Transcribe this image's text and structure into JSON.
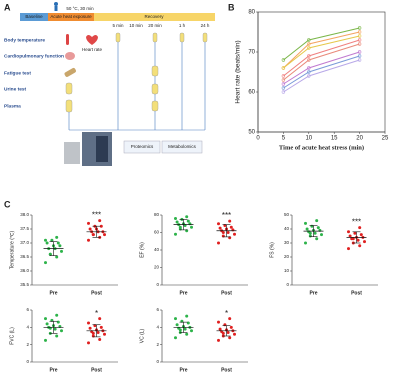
{
  "diagram": {
    "label": "A",
    "condition": "50 °C, 30 min",
    "stages": [
      "Baseline",
      "Acute heat exposure",
      "Recovery"
    ],
    "times": [
      "5 min",
      "10 min",
      "20 min",
      "1 h",
      "24 h"
    ],
    "measures": [
      "Body temperature",
      "Cardiopulmonary function",
      "Fatigue test",
      "Urine test",
      "Plasma"
    ],
    "heart_rate": "Heart rate",
    "omics": [
      "Proteomics",
      "Metabolomics"
    ]
  },
  "chart_data": [
    {
      "type": "line",
      "panel_label": "B",
      "y_label": "Heart rate (beats/min)",
      "x_label": "Time of acute heat stress (min)",
      "x": [
        5,
        10,
        20
      ],
      "xlim": [
        0,
        25
      ],
      "xticks": [
        0,
        5,
        10,
        15,
        20,
        25
      ],
      "ylim": [
        50,
        80
      ],
      "yticks": [
        50,
        60,
        70,
        80
      ],
      "series": [
        {
          "color": "#7ab648",
          "values": [
            68,
            73,
            76
          ]
        },
        {
          "color": "#f4a460",
          "values": [
            66,
            72,
            75
          ]
        },
        {
          "color": "#e6c84b",
          "values": [
            66,
            71,
            74
          ]
        },
        {
          "color": "#f08080",
          "values": [
            64,
            69,
            73
          ]
        },
        {
          "color": "#e98a7a",
          "values": [
            63,
            68,
            72
          ]
        },
        {
          "color": "#c07ad0",
          "values": [
            62,
            66,
            70
          ]
        },
        {
          "color": "#7a9ad8",
          "values": [
            61,
            65,
            69
          ]
        },
        {
          "color": "#b8a8e8",
          "values": [
            60,
            64,
            68
          ]
        }
      ]
    },
    {
      "type": "dotplot",
      "panel_label": "C",
      "y_label": "Temperature (℃)",
      "annotation": "***",
      "ylim": [
        35.5,
        38.0
      ],
      "yticks": [
        35.5,
        {
          "value": 36,
          "label": "36.0"
        },
        36.5,
        {
          "value": 37,
          "label": "37.0"
        },
        37.5,
        {
          "value": 38,
          "label": "38.0"
        }
      ],
      "groups": [
        {
          "name": "Pre",
          "color": "#2db34a",
          "values": [
            36.3,
            36.5,
            36.6,
            36.7,
            36.8,
            36.8,
            36.9,
            36.9,
            37.0,
            37.0,
            37.1,
            37.1,
            37.2,
            36.6
          ],
          "mean": 36.8,
          "sd": 0.25
        },
        {
          "name": "Post",
          "color": "#e02020",
          "values": [
            37.1,
            37.2,
            37.3,
            37.3,
            37.4,
            37.4,
            37.4,
            37.5,
            37.5,
            37.6,
            37.6,
            37.7,
            37.8,
            37.3
          ],
          "mean": 37.4,
          "sd": 0.2
        }
      ]
    },
    {
      "type": "dotplot",
      "y_label": "EF (%)",
      "annotation": "***",
      "ylim": [
        0,
        80
      ],
      "yticks": [
        0,
        20,
        40,
        60,
        80
      ],
      "groups": [
        {
          "name": "Pre",
          "color": "#2db34a",
          "values": [
            58,
            62,
            64,
            66,
            68,
            69,
            70,
            70,
            72,
            73,
            75,
            76,
            78,
            66
          ],
          "mean": 69,
          "sd": 6
        },
        {
          "name": "Post",
          "color": "#e02020",
          "values": [
            48,
            54,
            56,
            58,
            60,
            62,
            63,
            64,
            65,
            66,
            68,
            70,
            73,
            60
          ],
          "mean": 62,
          "sd": 7
        }
      ]
    },
    {
      "type": "dotplot",
      "y_label": "FS (%)",
      "annotation": "***",
      "ylim": [
        0,
        50
      ],
      "yticks": [
        0,
        10,
        20,
        30,
        40,
        50
      ],
      "groups": [
        {
          "name": "Pre",
          "color": "#2db34a",
          "values": [
            30,
            33,
            35,
            36,
            37,
            38,
            39,
            39,
            40,
            41,
            42,
            44,
            46,
            37
          ],
          "mean": 38.5,
          "sd": 4
        },
        {
          "name": "Post",
          "color": "#e02020",
          "values": [
            26,
            28,
            30,
            31,
            32,
            33,
            34,
            34,
            35,
            36,
            37,
            38,
            41,
            33
          ],
          "mean": 34,
          "sd": 4
        }
      ]
    },
    {
      "type": "dotplot",
      "y_label": "FVC (L)",
      "annotation": "*",
      "ylim": [
        0,
        6
      ],
      "yticks": [
        0,
        2,
        4,
        6
      ],
      "groups": [
        {
          "name": "Pre",
          "color": "#2db34a",
          "values": [
            2.5,
            3.0,
            3.3,
            3.6,
            3.8,
            4.0,
            4.1,
            4.2,
            4.4,
            4.6,
            4.8,
            5.0,
            5.4,
            3.9
          ],
          "mean": 4.0,
          "sd": 0.7
        },
        {
          "name": "Post",
          "color": "#e02020",
          "values": [
            2.2,
            2.6,
            3.0,
            3.2,
            3.4,
            3.5,
            3.6,
            3.7,
            3.9,
            4.0,
            4.2,
            4.5,
            5.0,
            3.3
          ],
          "mean": 3.6,
          "sd": 0.7
        }
      ]
    },
    {
      "type": "dotplot",
      "y_label": "VC (L)",
      "annotation": "*",
      "ylim": [
        0,
        6
      ],
      "yticks": [
        0,
        2,
        4,
        6
      ],
      "groups": [
        {
          "name": "Pre",
          "color": "#2db34a",
          "values": [
            2.8,
            3.2,
            3.4,
            3.6,
            3.8,
            3.9,
            4.0,
            4.1,
            4.3,
            4.5,
            4.7,
            5.0,
            5.3,
            3.7
          ],
          "mean": 4.0,
          "sd": 0.6
        },
        {
          "name": "Post",
          "color": "#e02020",
          "values": [
            2.5,
            2.8,
            3.0,
            3.2,
            3.4,
            3.5,
            3.6,
            3.7,
            3.8,
            4.0,
            4.3,
            4.6,
            5.0,
            3.3
          ],
          "mean": 3.6,
          "sd": 0.6
        }
      ]
    }
  ]
}
